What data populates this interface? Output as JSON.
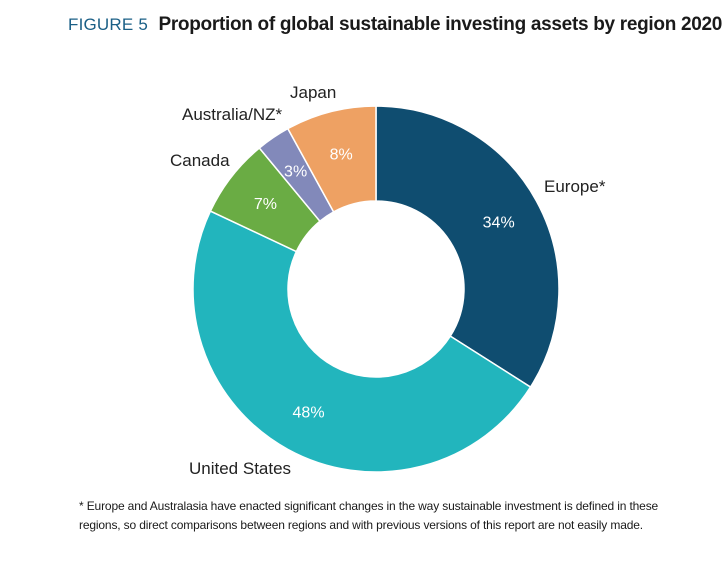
{
  "figure": {
    "label": "FIGURE 5",
    "title": "Proportion of global sustainable investing assets by region 2020"
  },
  "chart_data": {
    "type": "pie",
    "variant": "donut",
    "title": "Proportion of global sustainable investing assets by region 2020",
    "slices": [
      {
        "category": "Europe*",
        "value": 34,
        "label": "34%",
        "color": "#0f4d70"
      },
      {
        "category": "United States",
        "value": 48,
        "label": "48%",
        "color": "#22b5bd"
      },
      {
        "category": "Canada",
        "value": 7,
        "label": "7%",
        "color": "#6aac44"
      },
      {
        "category": "Australia/NZ*",
        "value": 3,
        "label": "3%",
        "color": "#8289ba"
      },
      {
        "category": "Japan",
        "value": 8,
        "label": "8%",
        "color": "#eea163"
      }
    ]
  },
  "footnote": "* Europe and Australasia have enacted significant changes in the way sustainable investment is defined in these regions, so direct comparisons between regions and with previous versions of this report are not easily made."
}
